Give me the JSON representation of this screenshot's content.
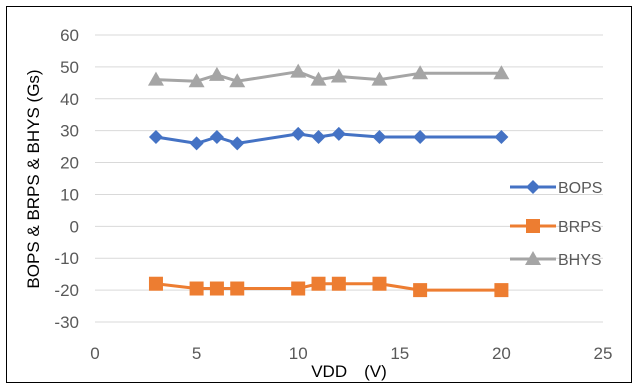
{
  "chart_data": {
    "type": "line",
    "title": "",
    "xlabel": "VDD　(V)",
    "ylabel": "BOPS & BRPS & BHYS (Gs)",
    "xlim": [
      0,
      25
    ],
    "ylim": [
      -30,
      60
    ],
    "xticks": [
      "0",
      "5",
      "10",
      "15",
      "20",
      "25"
    ],
    "yticks": [
      "-30",
      "-20",
      "-10",
      "0",
      "10",
      "20",
      "30",
      "40",
      "50",
      "60"
    ],
    "grid": "horizontal",
    "legend_position": "right",
    "series": [
      {
        "name": "BOPS",
        "color": "#4472C4",
        "marker": "diamond",
        "points": [
          [
            3,
            28
          ],
          [
            5,
            26
          ],
          [
            6,
            28
          ],
          [
            7,
            26
          ],
          [
            10,
            29
          ],
          [
            11,
            28
          ],
          [
            12,
            29
          ],
          [
            14,
            28
          ],
          [
            16,
            28
          ],
          [
            20,
            28
          ]
        ]
      },
      {
        "name": "BRPS",
        "color": "#ED7D31",
        "marker": "square",
        "points": [
          [
            3,
            -18
          ],
          [
            5,
            -19.5
          ],
          [
            6,
            -19.5
          ],
          [
            7,
            -19.5
          ],
          [
            10,
            -19.5
          ],
          [
            11,
            -18
          ],
          [
            12,
            -18
          ],
          [
            14,
            -18
          ],
          [
            16,
            -20
          ],
          [
            20,
            -20
          ]
        ]
      },
      {
        "name": "BHYS",
        "color": "#A5A5A5",
        "marker": "triangle",
        "points": [
          [
            3,
            46
          ],
          [
            5,
            45.5
          ],
          [
            6,
            47.5
          ],
          [
            7,
            45.5
          ],
          [
            10,
            48.5
          ],
          [
            11,
            46
          ],
          [
            12,
            47
          ],
          [
            14,
            46
          ],
          [
            16,
            48
          ],
          [
            20,
            48
          ]
        ]
      }
    ]
  }
}
